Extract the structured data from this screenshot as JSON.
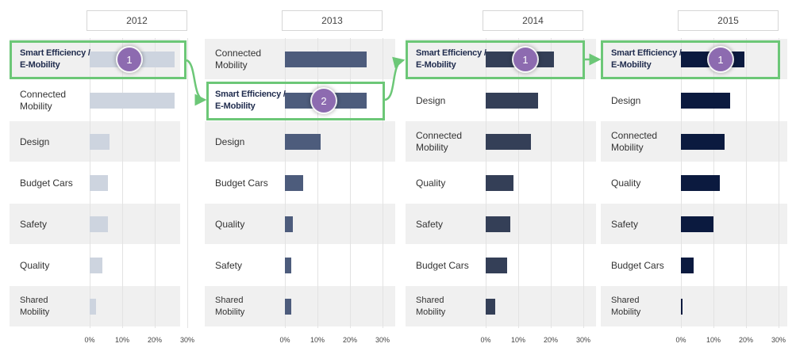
{
  "chart_data": {
    "type": "bar",
    "orientation": "horizontal",
    "x_ticks": [
      "0%",
      "10%",
      "20%",
      "30%"
    ],
    "xlim": [
      0,
      30
    ],
    "panels": [
      {
        "year": "2012",
        "color": "#cdd4df",
        "categories": [
          "Smart Efficiency /\nE-Mobility",
          "Connected\nMobility",
          "Design",
          "Budget Cars",
          "Safety",
          "Quality",
          "Shared\nMobility"
        ],
        "values": [
          26,
          26,
          6,
          5.5,
          5.5,
          4,
          2
        ],
        "highlight": {
          "index": 0,
          "rank": "1"
        }
      },
      {
        "year": "2013",
        "color": "#4d5c7c",
        "categories": [
          "Connected\nMobility",
          "Smart Efficiency /\nE-Mobility",
          "Design",
          "Budget Cars",
          "Quality",
          "Safety",
          "Shared\nMobility"
        ],
        "values": [
          25,
          25,
          11,
          5.5,
          2.5,
          2,
          2
        ],
        "highlight": {
          "index": 1,
          "rank": "2"
        }
      },
      {
        "year": "2014",
        "color": "#343f57",
        "categories": [
          "Smart Efficiency /\nE-Mobility",
          "Design",
          "Connected\nMobility",
          "Quality",
          "Safety",
          "Budget Cars",
          "Shared\nMobility"
        ],
        "values": [
          21,
          16,
          14,
          8.5,
          7.5,
          6.5,
          3
        ],
        "highlight": {
          "index": 0,
          "rank": "1"
        }
      },
      {
        "year": "2015",
        "color": "#0b1a3f",
        "categories": [
          "Smart Efficiency /\nE-Mobility",
          "Design",
          "Connected\nMobility",
          "Quality",
          "Safety",
          "Budget Cars",
          "Shared\nMobility"
        ],
        "values": [
          19.5,
          15,
          13.5,
          12,
          10,
          4,
          0.5
        ],
        "highlight": {
          "index": 0,
          "rank": "1"
        }
      }
    ],
    "highlight_color": "#6cc777",
    "badge_color": "#8d6bb0"
  }
}
